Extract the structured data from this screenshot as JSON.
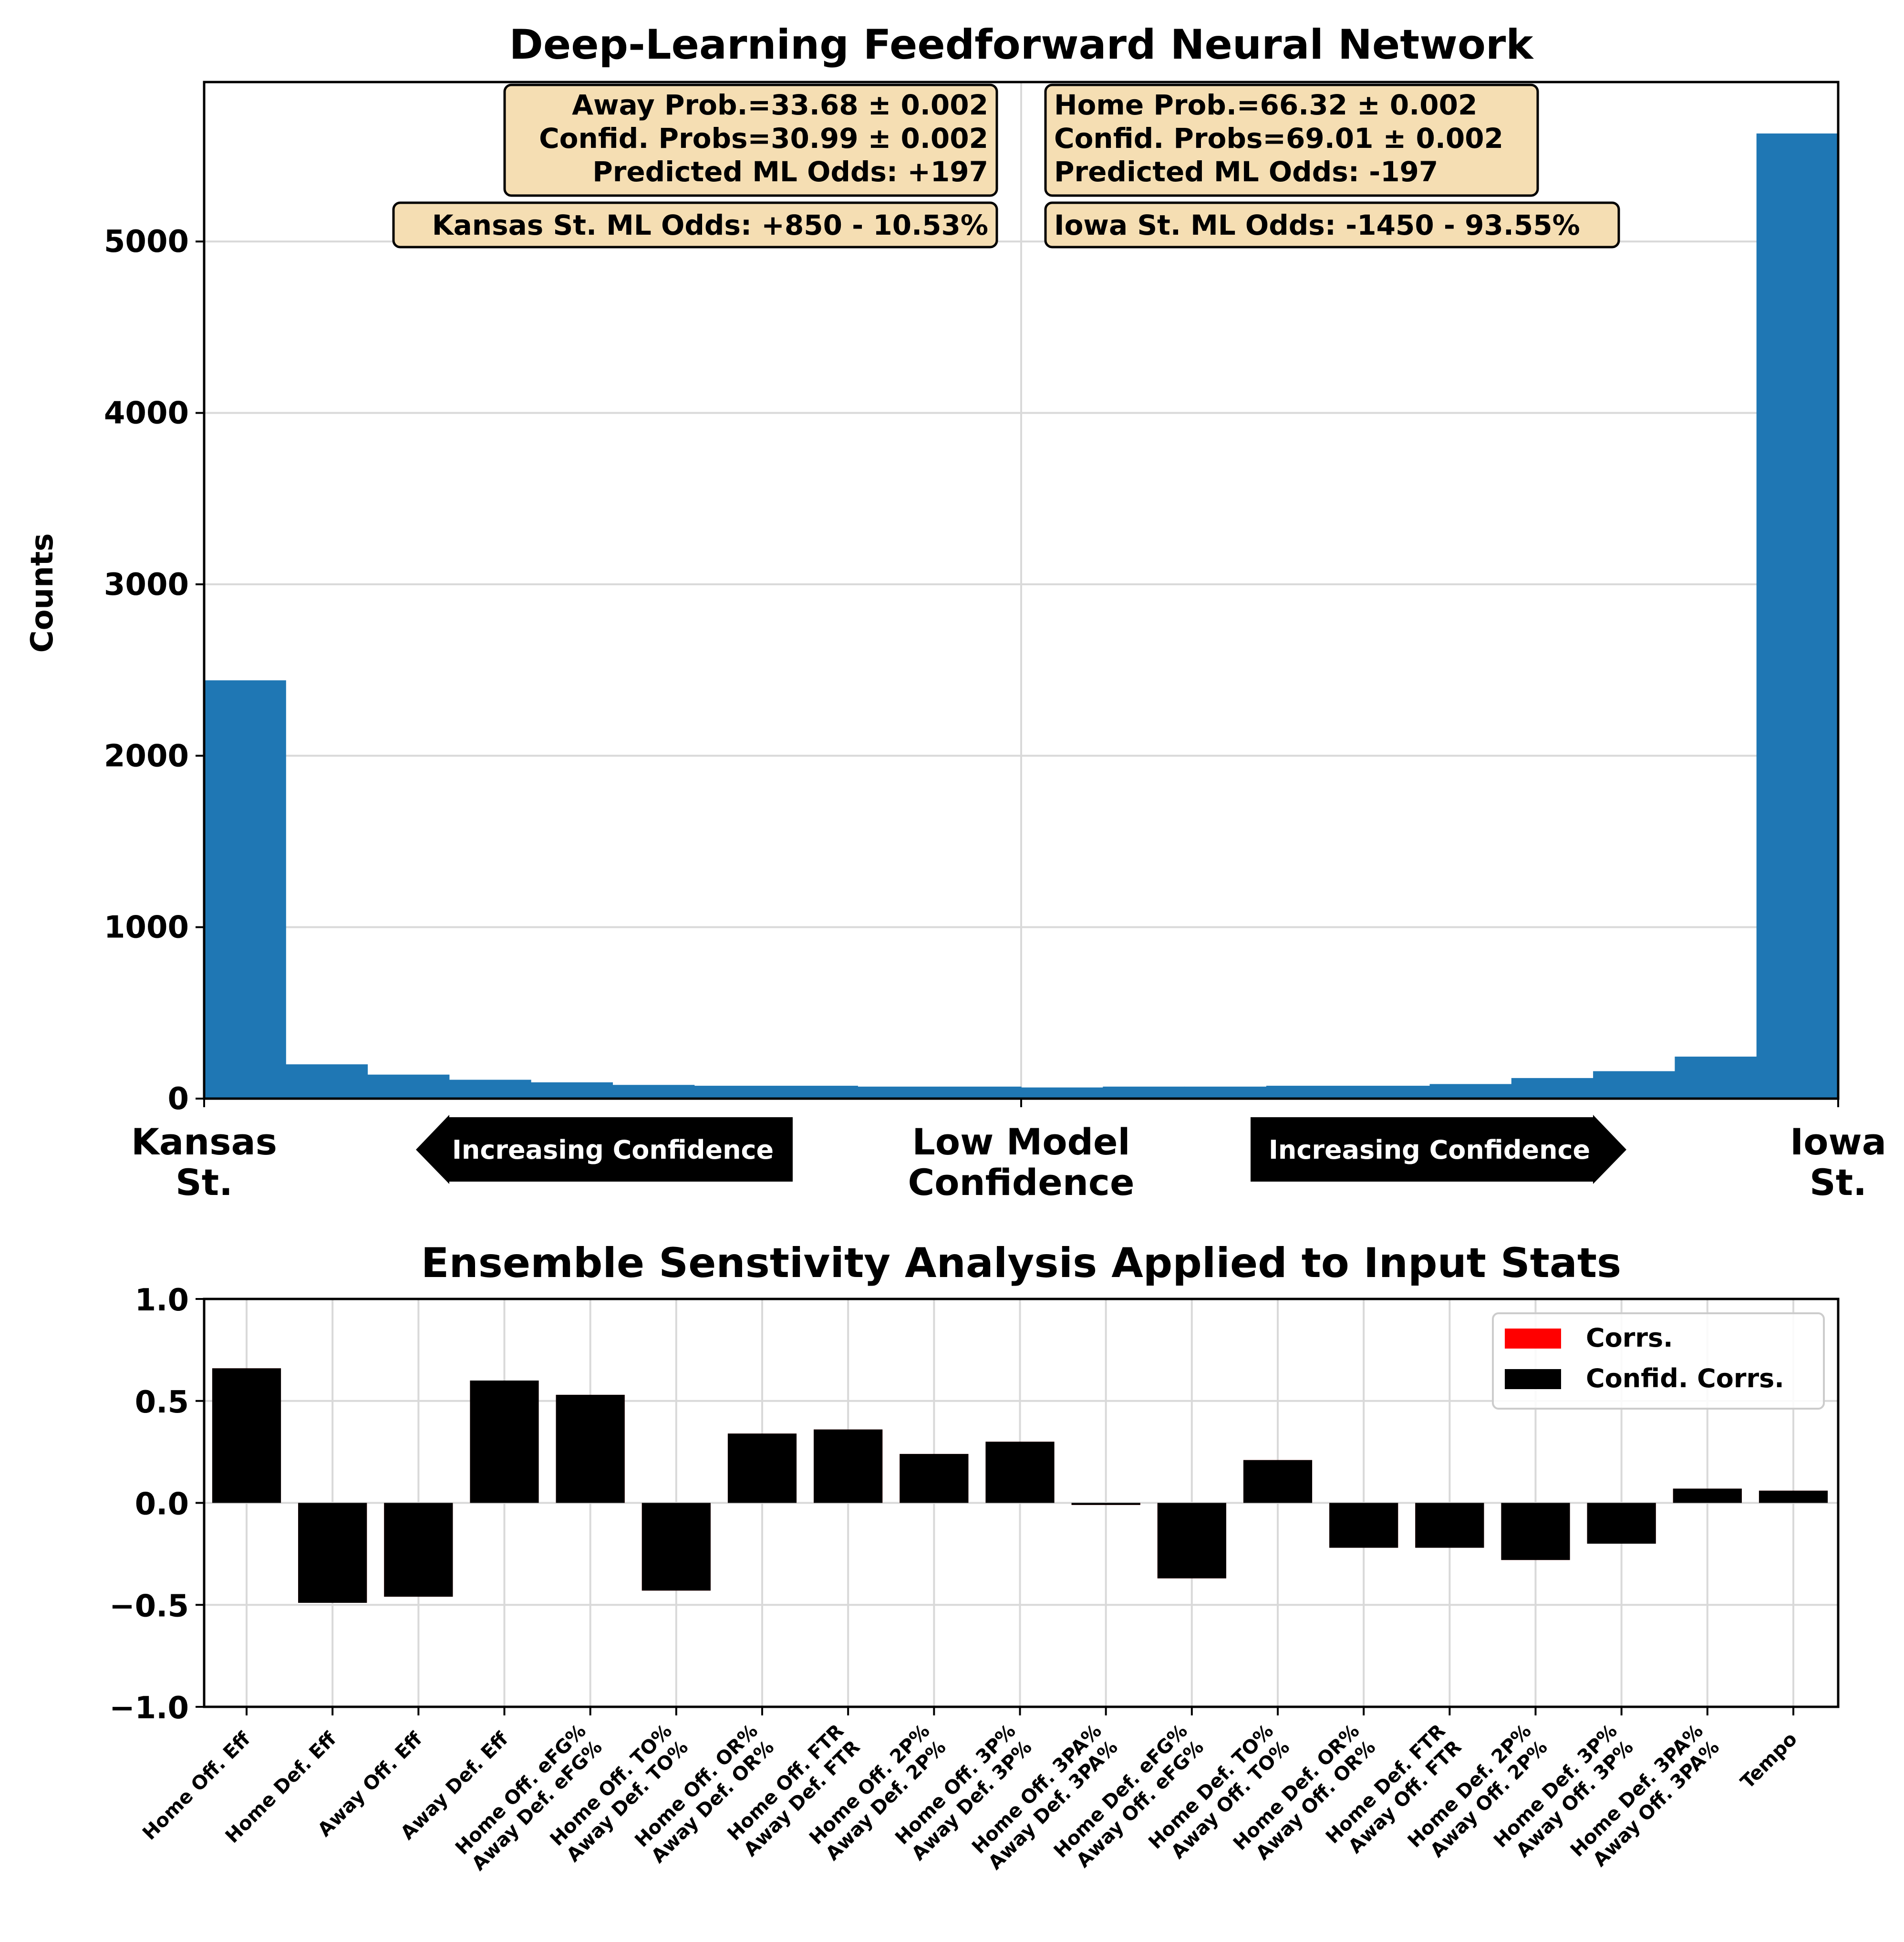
{
  "chart_data": [
    {
      "type": "bar",
      "title": "Deep-Learning Feedforward Neural Network",
      "ylabel": "Counts",
      "xlabel": "",
      "ylim": [
        0,
        5930
      ],
      "yticks": [
        "0",
        "1000",
        "2000",
        "3000",
        "4000",
        "5000"
      ],
      "ytick_values": [
        0,
        1000,
        2000,
        3000,
        4000,
        5000
      ],
      "bins": 20,
      "values": [
        2440,
        200,
        140,
        110,
        95,
        80,
        75,
        75,
        70,
        70,
        65,
        70,
        70,
        75,
        75,
        85,
        120,
        160,
        245,
        5630
      ],
      "color": "#1f77b4",
      "grid": true,
      "x_labels": {
        "left_line1": "Kansas",
        "left_line2": "St.",
        "center_line1": "Low Model",
        "center_line2": "Confidence",
        "right_line1": "Iowa",
        "right_line2": "St."
      },
      "arrows": {
        "left": "Increasing Confidence",
        "right": "Increasing Confidence"
      },
      "annotations": {
        "away": [
          "Away Prob.=33.68 ± 0.002",
          "Confid. Probs=30.99 ± 0.002",
          "Predicted ML Odds: +197"
        ],
        "home": [
          "Home Prob.=66.32 ± 0.002",
          "Confid. Probs=69.01 ± 0.002",
          "Predicted ML Odds: -197"
        ],
        "away_odds": "Kansas St. ML Odds: +850 - 10.53%",
        "home_odds": "Iowa St. ML Odds: -1450 - 93.55%"
      },
      "annotation_style": {
        "fill": "#f5deb3",
        "edge": "#000000"
      }
    },
    {
      "type": "bar",
      "title": "Ensemble Senstivity Analysis Applied to Input Stats",
      "xlabel": "",
      "ylabel": "",
      "ylim": [
        -1.0,
        1.0
      ],
      "yticks": [
        "1.0",
        "0.5",
        "0.0",
        "−0.5",
        "−1.0"
      ],
      "ytick_values": [
        1.0,
        0.5,
        0.0,
        -0.5,
        -1.0
      ],
      "grid": true,
      "legend_position": "top-right",
      "categories": [
        [
          "Home Off. Eff"
        ],
        [
          "Home Def. Eff"
        ],
        [
          "Away Off. Eff"
        ],
        [
          "Away Def. Eff"
        ],
        [
          "Home Off. eFG%",
          "Away Def. eFG%"
        ],
        [
          "Home Off. TO%",
          "Away Def. TO%"
        ],
        [
          "Home Off. OR%",
          "Away Def. OR%"
        ],
        [
          "Home Off. FTR",
          "Away Def. FTR"
        ],
        [
          "Home Off. 2P%",
          "Away Def. 2P%"
        ],
        [
          "Home Off. 3P%",
          "Away Def. 3P%"
        ],
        [
          "Home Off. 3PA%",
          "Away Def. 3PA%"
        ],
        [
          "Home Def. eFG%",
          "Away Off. eFG%"
        ],
        [
          "Home Def. TO%",
          "Away Off. TO%"
        ],
        [
          "Home Def. OR%",
          "Away Off. OR%"
        ],
        [
          "Home Def. FTR",
          "Away Off. FTR"
        ],
        [
          "Home Def. 2P%",
          "Away Off. 2P%"
        ],
        [
          "Home Def. 3P%",
          "Away Off. 3P%"
        ],
        [
          "Home Def. 3PA%",
          "Away Off. 3PA%"
        ],
        [
          "Tempo"
        ]
      ],
      "series": [
        {
          "name": "Corrs.",
          "color": "#ff0000",
          "values": [
            0.66,
            -0.49,
            -0.46,
            0.6,
            0.53,
            -0.43,
            0.34,
            0.36,
            0.24,
            0.3,
            -0.01,
            -0.37,
            0.21,
            -0.22,
            -0.22,
            -0.28,
            -0.2,
            0.07,
            0.06
          ]
        },
        {
          "name": "Confid. Corrs.",
          "color": "#000000",
          "values": [
            0.66,
            -0.49,
            -0.46,
            0.6,
            0.53,
            -0.43,
            0.34,
            0.36,
            0.24,
            0.3,
            -0.01,
            -0.37,
            0.21,
            -0.22,
            -0.22,
            -0.28,
            -0.2,
            0.07,
            0.06
          ]
        }
      ]
    }
  ]
}
